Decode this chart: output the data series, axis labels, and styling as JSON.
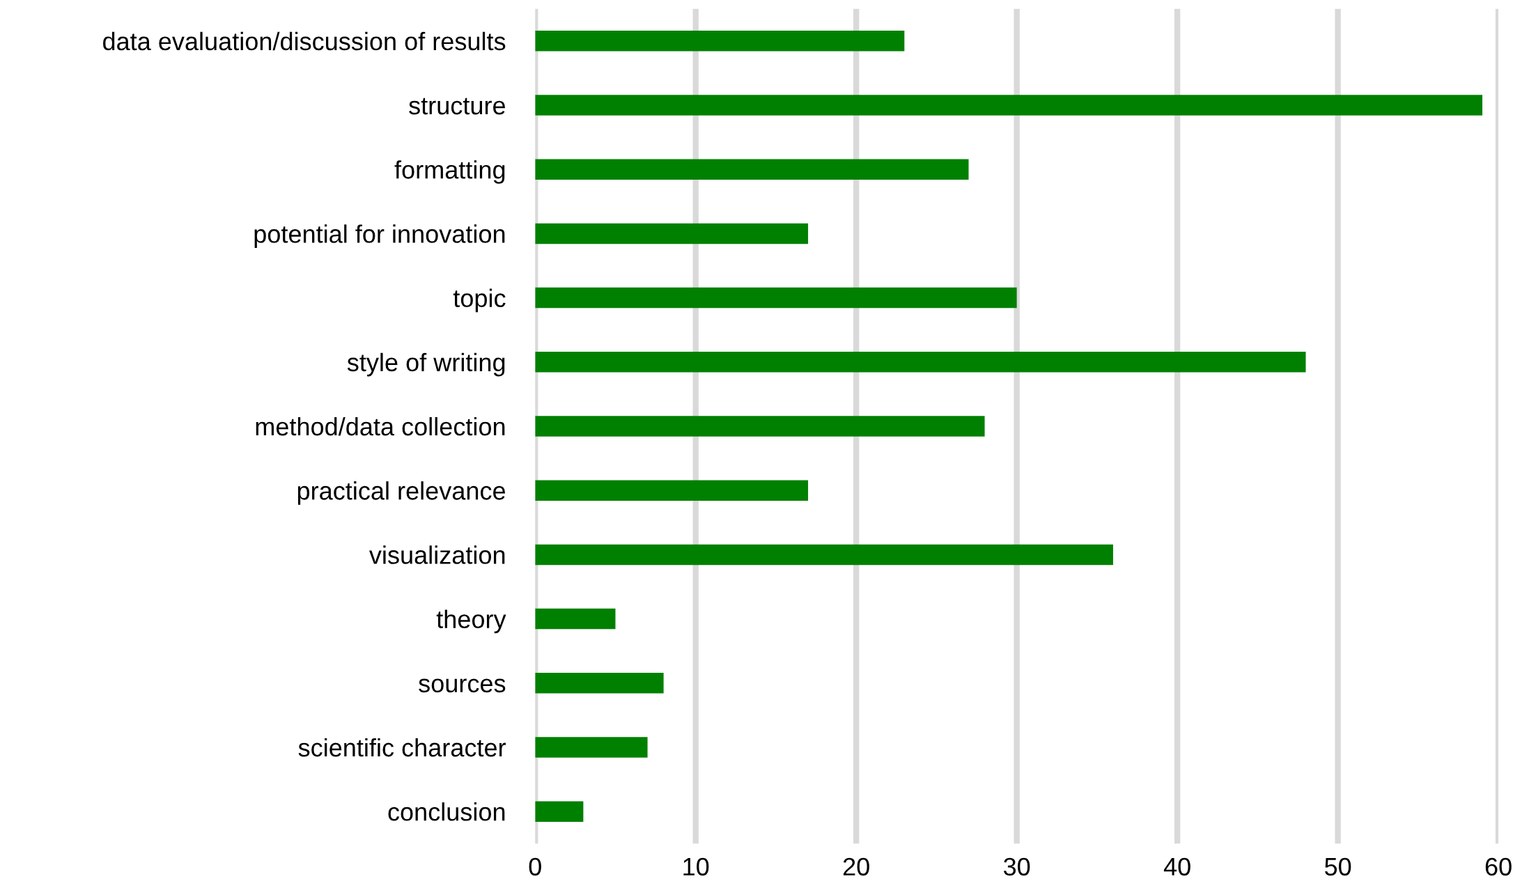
{
  "chart_data": {
    "type": "bar",
    "orientation": "horizontal",
    "categories": [
      "data evaluation/discussion of results",
      "structure",
      "formatting",
      "potential for innovation",
      "topic",
      "style of writing",
      "method/data collection",
      "practical relevance",
      "visualization",
      "theory",
      "sources",
      "scientific character",
      "conclusion"
    ],
    "values": [
      23,
      59,
      27,
      17,
      30,
      48,
      28,
      17,
      36,
      5,
      8,
      7,
      3
    ],
    "color": "#008000",
    "xlim": [
      0,
      60
    ],
    "xticks": [
      0,
      10,
      20,
      30,
      40,
      50,
      60
    ],
    "grid": "x"
  }
}
